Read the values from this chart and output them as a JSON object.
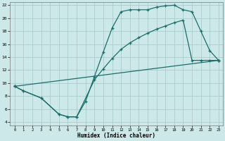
{
  "xlabel": "Humidex (Indice chaleur)",
  "bg_color": "#cce8e8",
  "grid_color": "#aacccc",
  "line_color": "#1a6e6a",
  "xlim": [
    -0.5,
    23.5
  ],
  "ylim": [
    3.5,
    22.5
  ],
  "xticks": [
    0,
    1,
    2,
    3,
    4,
    5,
    6,
    7,
    8,
    9,
    10,
    11,
    12,
    13,
    14,
    15,
    16,
    17,
    18,
    19,
    20,
    21,
    22,
    23
  ],
  "yticks": [
    4,
    6,
    8,
    10,
    12,
    14,
    16,
    18,
    20,
    22
  ],
  "line1_x": [
    0,
    1,
    3,
    5,
    6,
    7,
    8,
    9,
    10,
    11,
    12,
    13,
    14,
    15,
    16,
    17,
    18,
    19,
    20,
    21,
    22,
    23
  ],
  "line1_y": [
    9.5,
    8.8,
    7.7,
    5.2,
    4.8,
    4.8,
    7.2,
    11.0,
    14.8,
    18.5,
    21.0,
    21.3,
    21.3,
    21.3,
    21.7,
    21.9,
    22.0,
    21.3,
    21.0,
    18.0,
    15.0,
    13.5
  ],
  "line2_x": [
    0,
    1,
    3,
    5,
    6,
    7,
    9,
    10,
    11,
    12,
    13,
    14,
    15,
    16,
    17,
    18,
    19,
    20,
    21,
    22,
    23
  ],
  "line2_y": [
    9.5,
    8.8,
    7.7,
    5.2,
    4.8,
    4.8,
    10.5,
    12.2,
    13.8,
    15.2,
    16.2,
    17.0,
    17.7,
    18.3,
    18.8,
    19.3,
    19.7,
    13.5,
    13.5,
    13.5,
    13.5
  ],
  "line3_x": [
    0,
    23
  ],
  "line3_y": [
    9.5,
    13.5
  ]
}
